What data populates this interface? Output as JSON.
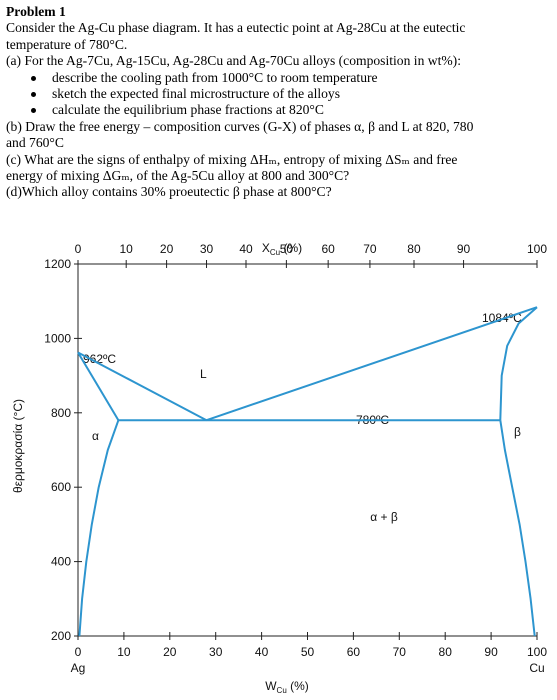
{
  "problem": {
    "title": "Problem 1",
    "intro_line1": "Consider the Ag-Cu phase diagram. It has a eutectic point at Ag-28Cu at the eutectic",
    "intro_line2": "temperature of 780°C.",
    "part_a": "(a) For the Ag-7Cu, Ag-15Cu, Ag-28Cu and Ag-70Cu alloys (composition in wt%):",
    "bullets": [
      "describe the cooling path from 1000°C to room temperature",
      "sketch the expected final microstructure of the alloys",
      "calculate the equilibrium phase fractions at 820°C"
    ],
    "part_b_line1": "(b) Draw the free energy – composition curves (G-X) of phases α, β and L at 820, 780",
    "part_b_line2": "and 760°C",
    "part_c_line1": "(c) What are the signs of enthalpy of mixing ΔHₘ, entropy of mixing ΔSₘ and free",
    "part_c_line2": "energy of mixing ΔGₘ, of the Ag-5Cu alloy at 800 and 300°C?",
    "part_d": "(d)Which alloy contains 30% proeutectic β phase at 800°C?"
  },
  "chart_data": {
    "type": "line",
    "top_axis_label": "X₄ᵤ (%)",
    "top_axis_label_main": "X",
    "top_axis_label_sub": "Cu",
    "top_axis_label_unit": " (%)",
    "top_ticks": [
      "0",
      "10",
      "20",
      "30",
      "40",
      "50",
      "60",
      "70",
      "80",
      "90",
      "100"
    ],
    "top_tick_values": [
      0,
      10.5,
      19.3,
      28.0,
      36.6,
      45.4,
      54.5,
      63.6,
      73.2,
      84.0,
      100
    ],
    "bottom_axis_label_main": "W",
    "bottom_axis_label_sub": "Cu",
    "bottom_axis_label_unit": " (%)",
    "bottom_ticks": [
      "0",
      "10",
      "20",
      "30",
      "40",
      "50",
      "60",
      "70",
      "80",
      "90",
      "100"
    ],
    "bottom_tick_values": [
      0,
      10,
      20,
      30,
      40,
      50,
      60,
      70,
      80,
      90,
      100
    ],
    "left_end_label": "Ag",
    "right_end_label": "Cu",
    "y_axis_label": "θερμοκρασία (°C)",
    "y_ticks": [
      "200",
      "400",
      "600",
      "800",
      "1000",
      "1200"
    ],
    "y_tick_values": [
      200,
      400,
      600,
      800,
      1000,
      1200
    ],
    "xlim": [
      0,
      100
    ],
    "ylim": [
      200,
      1200
    ],
    "annotations": {
      "ag_melting": "962ºC",
      "cu_melting": "1084ºC",
      "eutectic": "780ºC",
      "liquid": "L",
      "alpha": "α",
      "beta": "β",
      "alpha_beta": "α + β"
    },
    "series": [
      {
        "points": [
          [
            0,
            962
          ],
          [
            8.8,
            780
          ]
        ]
      },
      {
        "points": [
          [
            0,
            962
          ],
          [
            28,
            780
          ]
        ]
      },
      {
        "points": [
          [
            28,
            780
          ],
          [
            100,
            1084
          ]
        ]
      },
      {
        "points": [
          [
            8.8,
            780
          ],
          [
            92,
            780
          ]
        ]
      },
      {
        "points": [
          [
            8.8,
            780
          ],
          [
            6.5,
            700
          ],
          [
            4.5,
            600
          ],
          [
            3,
            500
          ],
          [
            1.8,
            400
          ],
          [
            0.9,
            300
          ],
          [
            0.3,
            200
          ]
        ]
      },
      {
        "points": [
          [
            100,
            1084
          ],
          [
            96,
            1040
          ],
          [
            93.5,
            980
          ],
          [
            92.3,
            900
          ],
          [
            92,
            780
          ]
        ]
      },
      {
        "points": [
          [
            92,
            780
          ],
          [
            93,
            700
          ],
          [
            94.6,
            600
          ],
          [
            96.2,
            500
          ],
          [
            97.5,
            400
          ],
          [
            98.6,
            300
          ],
          [
            99.5,
            200
          ]
        ]
      }
    ],
    "line_color": "#2d95cf"
  }
}
